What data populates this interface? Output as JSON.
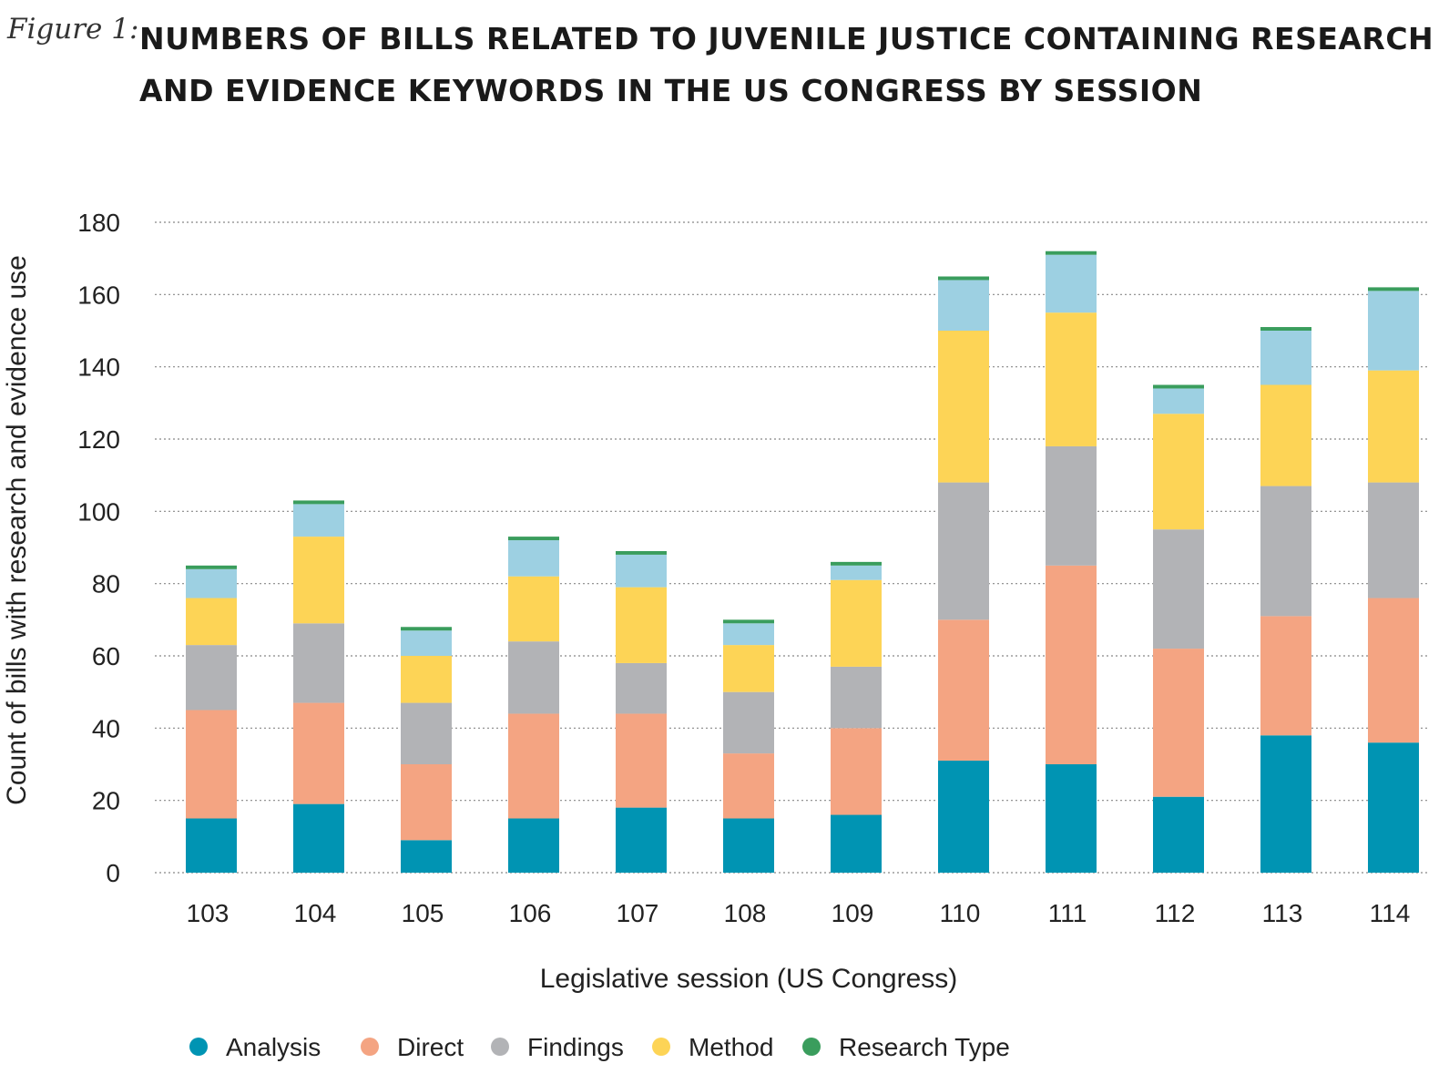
{
  "figure_label": "Figure 1:",
  "chart_data": {
    "type": "bar",
    "stacked": true,
    "title": "NUMBERS OF BILLS RELATED TO JUVENILE JUSTICE CONTAINING RESEARCH AND EVIDENCE KEYWORDS IN THE US CONGRESS BY SESSION",
    "xlabel": "Legislative session (US Congress)",
    "ylabel": "Count of bills with research and evidence use",
    "ylim": [
      0,
      180
    ],
    "yticks": [
      "0",
      "20",
      "40",
      "60",
      "80",
      "100",
      "120",
      "140",
      "160",
      "180"
    ],
    "grid": true,
    "legend_position": "bottom",
    "categories": [
      "103",
      "104",
      "105",
      "106",
      "107",
      "108",
      "109",
      "110",
      "111",
      "112",
      "113",
      "114"
    ],
    "series": [
      {
        "name": "Analysis",
        "color": "#0094b3",
        "values": [
          15,
          19,
          9,
          15,
          18,
          15,
          16,
          31,
          30,
          21,
          38,
          36
        ]
      },
      {
        "name": "Direct",
        "color": "#f4a482",
        "values": [
          30,
          28,
          21,
          29,
          26,
          18,
          24,
          39,
          55,
          41,
          33,
          40
        ]
      },
      {
        "name": "Findings",
        "color": "#b2b3b6",
        "values": [
          18,
          22,
          17,
          20,
          14,
          17,
          17,
          38,
          33,
          33,
          36,
          32
        ]
      },
      {
        "name": "Method",
        "color": "#fdd456",
        "values": [
          13,
          24,
          13,
          18,
          21,
          13,
          24,
          42,
          37,
          32,
          28,
          31
        ]
      },
      {
        "name": "",
        "color": "#9dd0e2",
        "values": [
          8,
          9,
          7,
          10,
          9,
          6,
          4,
          14,
          16,
          7,
          15,
          22
        ]
      },
      {
        "name": "Research Type",
        "color": "#3a9d5d",
        "values": [
          1,
          1,
          1,
          1,
          1,
          1,
          1,
          1,
          1,
          1,
          1,
          1
        ]
      }
    ]
  }
}
